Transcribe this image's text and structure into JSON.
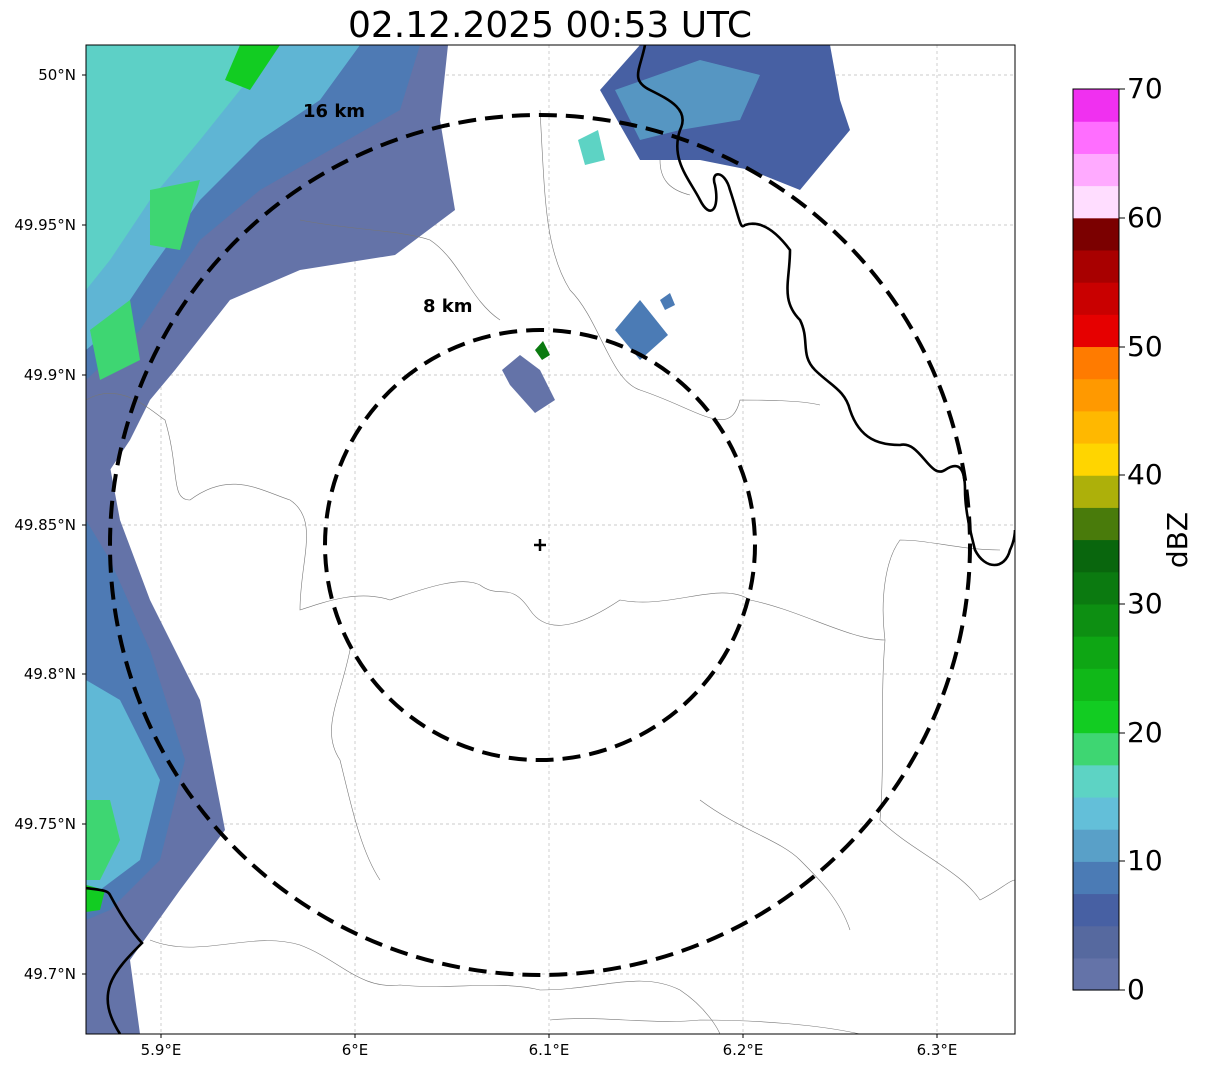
{
  "title": "02.12.2025 00:53 UTC",
  "rings": [
    {
      "label": "16 km",
      "radius_km": 16
    },
    {
      "label": "8 km",
      "radius_km": 8
    }
  ],
  "radar_site": {
    "lon": 6.096,
    "lat": 49.842,
    "marker": "plus-icon"
  },
  "axes": {
    "xlim": [
      5.86,
      6.34
    ],
    "ylim": [
      49.68,
      50.01
    ],
    "x_ticks": [
      {
        "value": 5.9,
        "label": "5.9°E"
      },
      {
        "value": 6.0,
        "label": "6°E"
      },
      {
        "value": 6.1,
        "label": "6.1°E"
      },
      {
        "value": 6.2,
        "label": "6.2°E"
      },
      {
        "value": 6.3,
        "label": "6.3°E"
      }
    ],
    "y_ticks": [
      {
        "value": 50.0,
        "label": "50°N"
      },
      {
        "value": 49.95,
        "label": "49.95°N"
      },
      {
        "value": 49.9,
        "label": "49.9°N"
      },
      {
        "value": 49.85,
        "label": "49.85°N"
      },
      {
        "value": 49.8,
        "label": "49.8°N"
      },
      {
        "value": 49.75,
        "label": "49.75°N"
      },
      {
        "value": 49.7,
        "label": "49.7°N"
      }
    ],
    "grid": true
  },
  "colorbar": {
    "unit": "dBZ",
    "range": [
      0,
      70
    ],
    "tick_labels": [
      "0",
      "10",
      "20",
      "30",
      "40",
      "50",
      "60",
      "70"
    ],
    "colors": [
      "#6473a8",
      "#56699f",
      "#4760a3",
      "#4b7bb5",
      "#59a0c8",
      "#63bfd9",
      "#5dd3c4",
      "#3ed672",
      "#12cc22",
      "#10b818",
      "#0ea614",
      "#0d8f12",
      "#0b7a10",
      "#09660d",
      "#497b0b",
      "#adb00a",
      "#ffd500",
      "#ffb800",
      "#ff9900",
      "#ff7b00",
      "#e60000",
      "#c90000",
      "#a80000",
      "#7b0000",
      "#ffddff",
      "#ffaaff",
      "#ff6eff",
      "#f030f0"
    ]
  }
}
